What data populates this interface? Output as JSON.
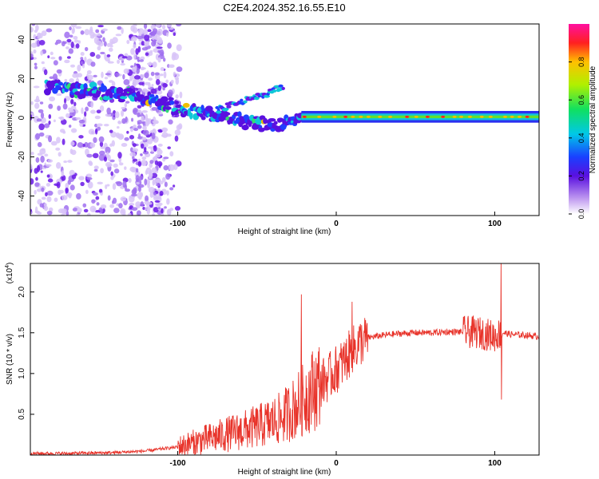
{
  "figure_title": "C2E4.2024.352.16.55.E10",
  "chart_data": [
    {
      "type": "heatmap",
      "name": "spectrogram",
      "xlabel": "Height of straight line (km)",
      "ylabel": "Frequency (Hz)",
      "xlim": [
        -193,
        128
      ],
      "ylim": [
        -50,
        48
      ],
      "xticks": [
        -100,
        0,
        100
      ],
      "yticks": [
        -40,
        -20,
        0,
        20,
        40
      ],
      "colorbar": {
        "label": "Normalized spectral amplitude",
        "range": [
          0,
          1
        ],
        "ticks": [
          0.0,
          0.2,
          0.4,
          0.6,
          0.8
        ]
      },
      "ridge_track": [
        {
          "x": -183,
          "y": 16
        },
        {
          "x": -165,
          "y": 14
        },
        {
          "x": -145,
          "y": 13
        },
        {
          "x": -130,
          "y": 12
        },
        {
          "x": -115,
          "y": 8
        },
        {
          "x": -100,
          "y": 5
        },
        {
          "x": -85,
          "y": 3
        },
        {
          "x": -70,
          "y": 1
        },
        {
          "x": -55,
          "y": -2
        },
        {
          "x": -40,
          "y": -4
        },
        {
          "x": -25,
          "y": -1
        },
        {
          "x": -20,
          "y": 0
        },
        {
          "x": 0,
          "y": 1
        },
        {
          "x": 50,
          "y": 0.5
        },
        {
          "x": 100,
          "y": 0.5
        },
        {
          "x": 128,
          "y": 0.5
        }
      ],
      "branch_track": [
        {
          "x": -75,
          "y": 4
        },
        {
          "x": -60,
          "y": 8
        },
        {
          "x": -45,
          "y": 12
        },
        {
          "x": -33,
          "y": 16
        }
      ]
    },
    {
      "type": "line",
      "name": "snr",
      "xlabel": "Height of straight line (km)",
      "ylabel": "SNR (10 * v/v)",
      "y_multiplier": "(x10",
      "y_multiplier_exp": "4",
      "y_multiplier_close": ")",
      "xlim": [
        -193,
        128
      ],
      "ylim": [
        0,
        2.35
      ],
      "xticks": [
        -100,
        0,
        100
      ],
      "yticks": [
        0.5,
        1.0,
        1.5,
        2.0
      ],
      "color": "#e8332a",
      "x": [
        -193,
        -170,
        -140,
        -120,
        -100,
        -85,
        -70,
        -55,
        -45,
        -35,
        -28,
        -22,
        -18,
        -12,
        -5,
        0,
        5,
        10,
        15,
        20,
        30,
        40,
        50,
        60,
        70,
        80,
        90,
        95,
        100,
        105,
        110,
        120,
        128
      ],
      "y": [
        0.02,
        0.02,
        0.03,
        0.05,
        0.1,
        0.18,
        0.25,
        0.32,
        0.38,
        0.45,
        0.55,
        0.65,
        0.75,
        0.85,
        0.95,
        1.05,
        1.15,
        1.28,
        1.38,
        1.44,
        1.47,
        1.49,
        1.5,
        1.5,
        1.51,
        1.51,
        1.5,
        1.48,
        1.46,
        1.5,
        1.48,
        1.47,
        1.45
      ],
      "spikes": [
        {
          "x": -22,
          "y": 1.97
        },
        {
          "x": 10,
          "y": 1.88
        },
        {
          "x": 104,
          "y": 2.35
        },
        {
          "x": 104.3,
          "y": 0.68
        }
      ]
    }
  ]
}
